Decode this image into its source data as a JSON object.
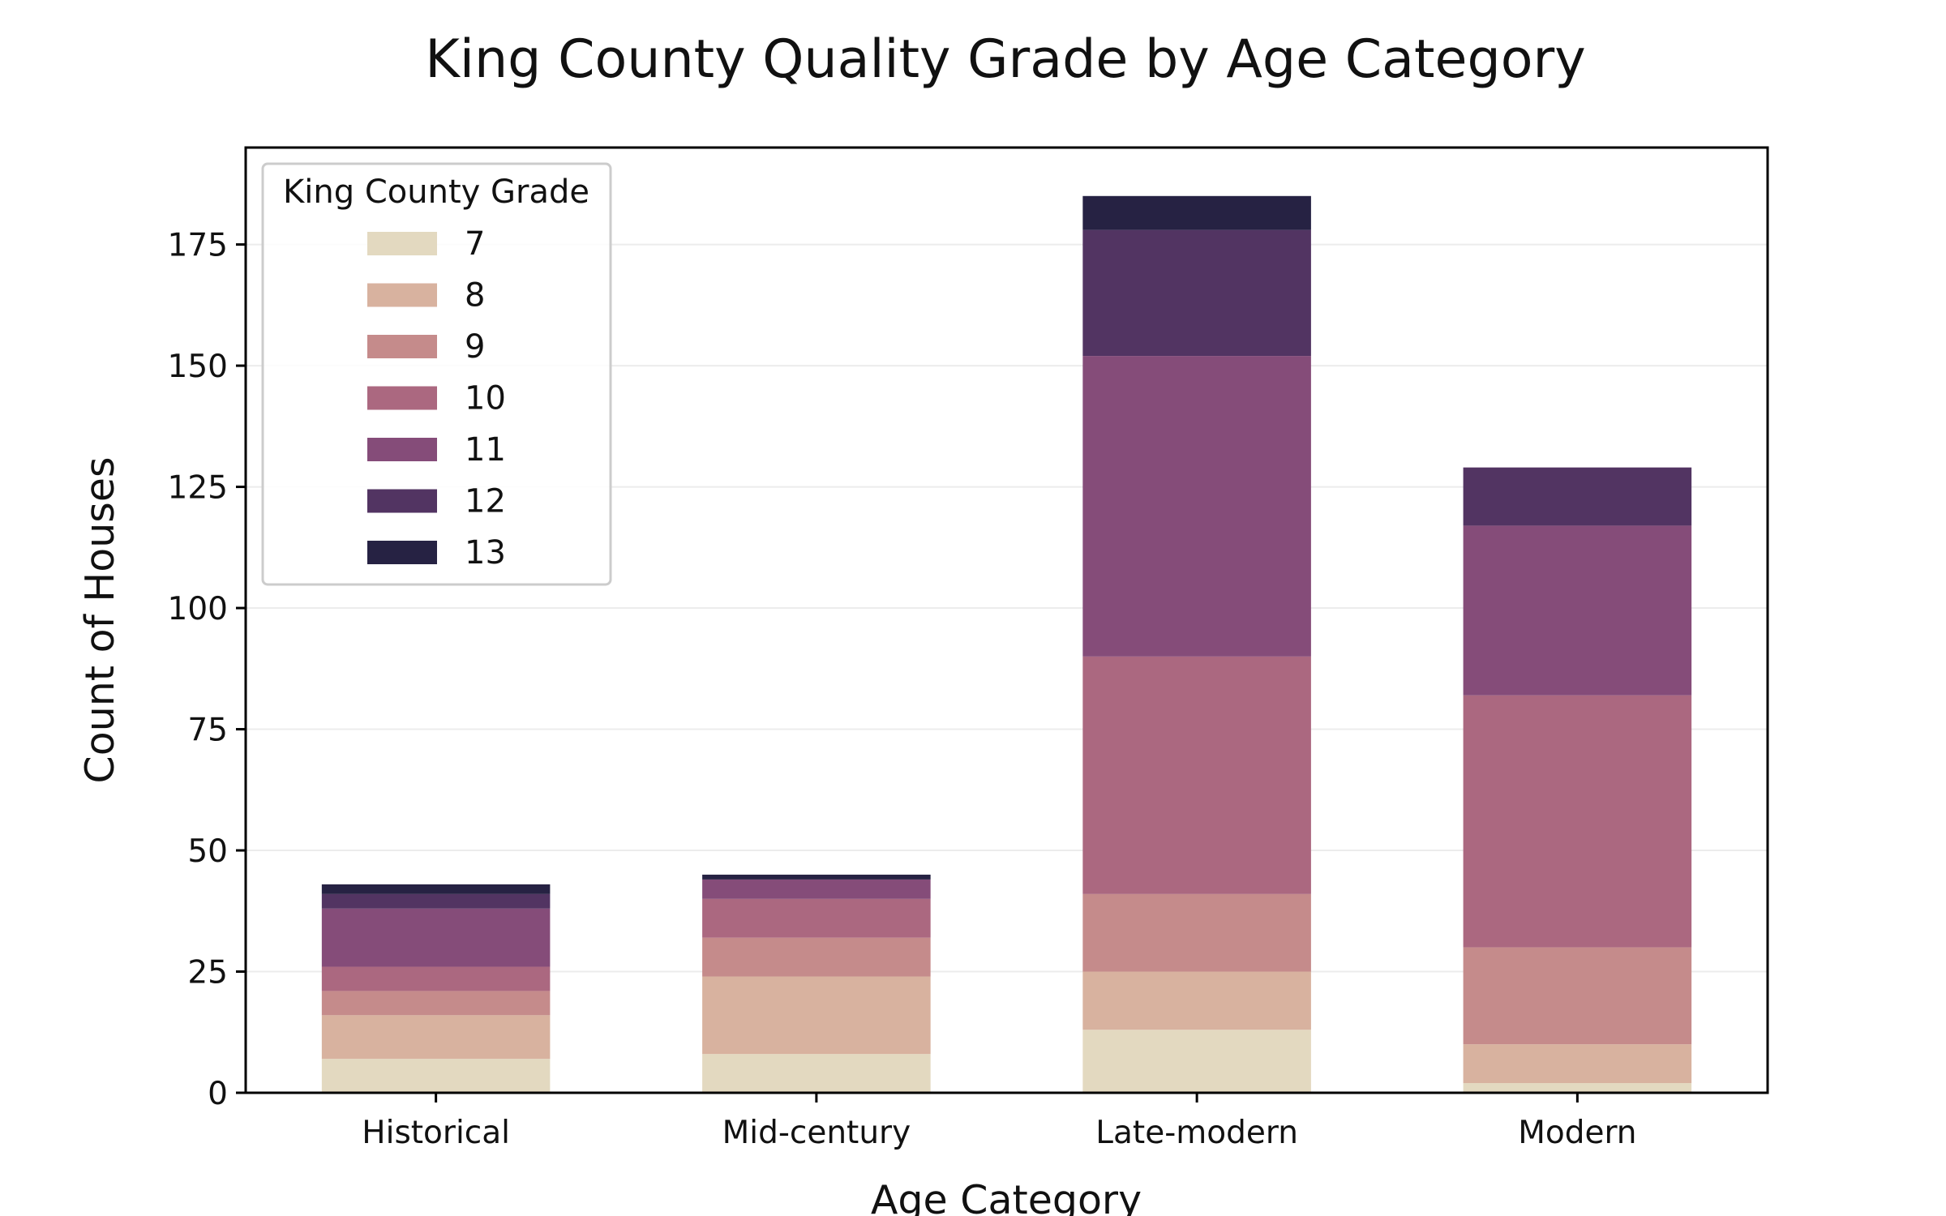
{
  "chart_data": {
    "type": "bar",
    "stacked": true,
    "title": "King County Quality Grade by Age Category",
    "xlabel": "Age Category",
    "ylabel": "Count of Houses",
    "ylim": [
      0,
      195
    ],
    "yticks": [
      0,
      25,
      50,
      75,
      100,
      125,
      150,
      175
    ],
    "grid": true,
    "legend": {
      "title": "King County Grade",
      "placement": "top-left"
    },
    "categories": [
      "Historical",
      "Mid-century",
      "Late-modern",
      "Modern"
    ],
    "series": [
      {
        "name": "7",
        "color": "#e3d9c0",
        "values": [
          7,
          8,
          13,
          2
        ]
      },
      {
        "name": "8",
        "color": "#d8b29f",
        "values": [
          9,
          16,
          12,
          8
        ]
      },
      {
        "name": "9",
        "color": "#c58b8b",
        "values": [
          5,
          8,
          16,
          20
        ]
      },
      {
        "name": "10",
        "color": "#ab6880",
        "values": [
          5,
          8,
          49,
          52
        ]
      },
      {
        "name": "11",
        "color": "#854c79",
        "values": [
          12,
          4,
          62,
          35
        ]
      },
      {
        "name": "12",
        "color": "#523462",
        "values": [
          3,
          0,
          26,
          12
        ]
      },
      {
        "name": "13",
        "color": "#262243",
        "values": [
          2,
          1,
          7,
          0
        ]
      }
    ]
  }
}
